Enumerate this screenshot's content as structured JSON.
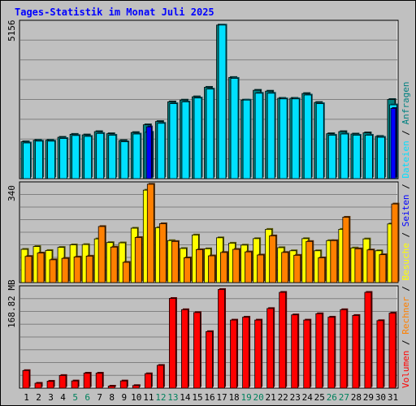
{
  "chart_data": {
    "type": "bar",
    "title": "Tages-Statistik im Monat Juli 2025",
    "categories": [
      "1",
      "2",
      "3",
      "4",
      "5",
      "6",
      "7",
      "8",
      "9",
      "10",
      "11",
      "12",
      "13",
      "14",
      "15",
      "16",
      "17",
      "18",
      "19",
      "20",
      "21",
      "22",
      "23",
      "24",
      "25",
      "26",
      "27",
      "28",
      "29",
      "30",
      "31"
    ],
    "weekend_days": [
      5,
      6,
      12,
      13,
      19,
      20,
      26,
      27
    ],
    "colors": {
      "background": "#c0c0c0",
      "title": "#0000ff",
      "anfragen": "#008080",
      "dateien": "#00e0ff",
      "seiten": "#0000ff",
      "besuche": "#ffff00",
      "rechner": "#ff8000",
      "volumen": "#ff0000",
      "weekend": "#00805c",
      "gridline": "#808080"
    },
    "legend": {
      "position": "right",
      "slash": "/",
      "hits_panel": [
        {
          "key": "anfragen",
          "label": "Anfragen"
        },
        {
          "key": "dateien",
          "label": "Dateien"
        },
        {
          "key": "seiten",
          "label": "Seiten"
        }
      ],
      "visits_panel": [
        {
          "key": "besuche",
          "label": "Besuche"
        },
        {
          "key": "rechner",
          "label": "Rechner"
        }
      ],
      "volume_panel": [
        {
          "key": "volumen",
          "label": "Volumen"
        }
      ]
    },
    "panels": {
      "hits": {
        "max_label": "5156",
        "ymax": 5156,
        "series": [
          {
            "key": "anfragen",
            "values": [
              1240,
              1290,
              1290,
              1390,
              1490,
              1470,
              1580,
              1510,
              1280,
              1550,
              1810,
              1920,
              2580,
              2640,
              2750,
              3070,
              5160,
              3400,
              2640,
              2970,
              2940,
              2700,
              2700,
              2860,
              2560,
              1510,
              1580,
              1500,
              1540,
              1420,
              2660
            ]
          },
          {
            "key": "dateien",
            "values": [
              1200,
              1260,
              1260,
              1350,
              1450,
              1420,
              1520,
              1460,
              1240,
              1500,
              1560,
              1860,
              2520,
              2580,
              2710,
              3010,
              5160,
              3370,
              2640,
              2870,
              2870,
              2680,
              2680,
              2810,
              2520,
              1460,
              1500,
              1460,
              1460,
              1390,
              2480
            ]
          },
          {
            "key": "seiten",
            "values": [
              0,
              0,
              0,
              0,
              0,
              0,
              0,
              0,
              0,
              0,
              1740,
              0,
              0,
              0,
              0,
              0,
              0,
              0,
              0,
              0,
              0,
              0,
              0,
              0,
              0,
              0,
              0,
              0,
              0,
              0,
              2360
            ]
          }
        ]
      },
      "visits": {
        "max_label": "340",
        "ymax": 340,
        "series": [
          {
            "key": "besuche",
            "values": [
              118,
              128,
              114,
              125,
              134,
              135,
              155,
              142,
              141,
              193,
              328,
              195,
              149,
              121,
              169,
              120,
              159,
              140,
              133,
              156,
              189,
              124,
              113,
              156,
              113,
              149,
              189,
              123,
              155,
              113,
              208
            ]
          },
          {
            "key": "rechner",
            "values": [
              93,
              105,
              81,
              86,
              91,
              94,
              199,
              126,
              72,
              160,
              349,
              209,
              146,
              88,
              117,
              95,
              107,
              118,
              109,
              98,
              166,
              107,
              97,
              146,
              88,
              149,
              232,
              120,
              116,
              99,
              279
            ]
          }
        ]
      },
      "volume": {
        "max_label": "168.82 MB",
        "ymax": 168.82,
        "series": [
          {
            "key": "volumen",
            "values": [
              30.5,
              8.5,
              12,
              22,
              12.5,
              26,
              26,
              3.5,
              12.5,
              4.5,
              25,
              39.5,
              155.5,
              136,
              131,
              98,
              171,
              118,
              123,
              118,
              138,
              166,
              127,
              118,
              129,
              123,
              136,
              126,
              166,
              117,
              130
            ]
          }
        ]
      }
    }
  }
}
